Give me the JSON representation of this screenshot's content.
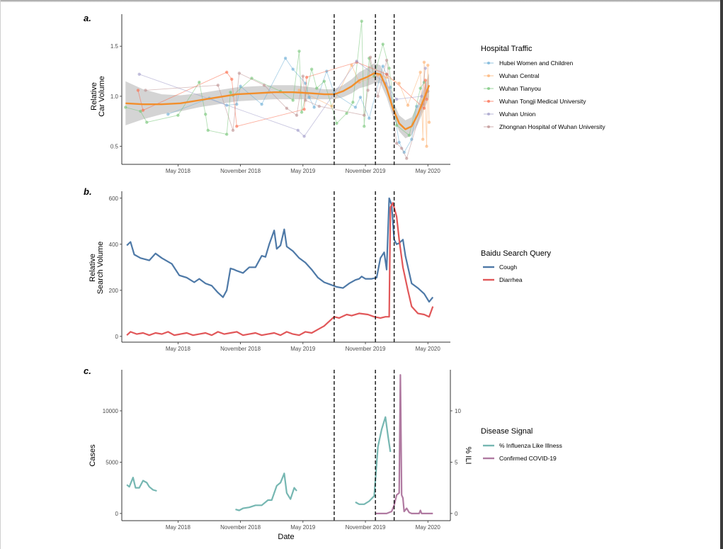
{
  "chart_data": [
    {
      "panel": "a.",
      "type": "line",
      "title": "",
      "ylabel": [
        "Relative",
        "Car Volume"
      ],
      "xlabel": "",
      "ylim": [
        0.32,
        1.82
      ],
      "yticks": [
        0.5,
        1.0,
        1.5
      ],
      "ytick_labels": [
        "0.5",
        "1.0",
        "1.5"
      ],
      "xticks": [
        2018.33,
        2018.83,
        2019.33,
        2019.83,
        2020.33
      ],
      "xtick_labels": [
        "May 2018",
        "November 2018",
        "May 2019",
        "November 2019",
        "May 2020"
      ],
      "xlim": [
        2017.88,
        2020.51
      ],
      "vlines": [
        2019.58,
        2019.91,
        2020.06
      ],
      "legend": {
        "title": "Hospital Traffic",
        "placement": "right"
      },
      "series": [
        {
          "name": "Hubei Women and Children",
          "color": "#6baed6",
          "x": [
            2018.25,
            2018.58,
            2018.72,
            2018.8,
            2018.83,
            2019.0,
            2019.19,
            2019.25,
            2019.35,
            2019.38,
            2019.42,
            2019.52,
            2019.58,
            2019.75,
            2019.79,
            2019.86,
            2019.97,
            2020.0,
            2020.03,
            2020.1,
            2020.14,
            2020.2,
            2020.24
          ],
          "y": [
            0.82,
            0.98,
            0.91,
            0.92,
            1.1,
            0.92,
            1.38,
            1.27,
            1.13,
            0.99,
            0.89,
            1.25,
            1.03,
            0.89,
            0.99,
            0.78,
            1.3,
            1.22,
            1.09,
            0.54,
            0.44,
            0.57,
            0.9
          ]
        },
        {
          "name": "Wuhan Central",
          "color": "#fdae6b",
          "x": [
            2019.3,
            2019.56,
            2019.72,
            2019.78,
            2019.93,
            2020.0,
            2020.1,
            2020.17,
            2020.27,
            2020.29,
            2020.3,
            2020.32,
            2020.33,
            2020.34
          ],
          "y": [
            1.06,
            0.9,
            1.31,
            1.14,
            1.21,
            1.19,
            1.13,
            0.91,
            1.24,
            0.57,
            1.34,
            0.5,
            1.31,
            0.74
          ]
        },
        {
          "name": "Wuhan Tianyou",
          "color": "#74c476",
          "x": [
            2017.91,
            2018.03,
            2018.08,
            2018.33,
            2018.5,
            2018.55,
            2018.57,
            2018.72,
            2018.75,
            2018.77,
            2018.92,
            2019.15,
            2019.25,
            2019.3,
            2019.32,
            2019.4,
            2019.44,
            2019.5,
            2019.6,
            2019.68,
            2019.73,
            2019.8,
            2019.82,
            2019.86,
            2019.9,
            2019.97,
            2020.02,
            2020.08,
            2020.18,
            2020.27,
            2020.3
          ],
          "y": [
            0.89,
            0.85,
            0.74,
            0.81,
            1.14,
            0.82,
            0.66,
            0.62,
            1.04,
            1.01,
            1.18,
            1.05,
            0.96,
            1.45,
            0.84,
            1.27,
            1.08,
            1.15,
            0.73,
            0.83,
            0.94,
            1.75,
            0.7,
            1.38,
            1.2,
            1.52,
            1.28,
            0.71,
            0.61,
            1.08,
            1.14
          ]
        },
        {
          "name": "Wuhan Tongji Medical University",
          "color": "#fb6a4a",
          "x": [
            2018.01,
            2018.05,
            2018.72,
            2018.76,
            2018.8,
            2019.34,
            2019.36,
            2019.76,
            2020.0,
            2020.3,
            2020.31,
            2020.32
          ],
          "y": [
            1.06,
            0.86,
            1.24,
            1.17,
            0.7,
            0.87,
            1.19,
            1.34,
            1.22,
            0.88,
            1.16,
            0.97
          ]
        },
        {
          "name": "Wuhan Union",
          "color": "#9e9ac8",
          "x": [
            2018.02,
            2019.29,
            2019.34,
            2019.76,
            2019.99,
            2020.08,
            2020.28,
            2020.31
          ],
          "y": [
            1.22,
            0.66,
            0.6,
            1.35,
            1.13,
            0.97,
            1.0,
            1.28
          ]
        },
        {
          "name": "Zhongnan Hospital of Wuhan University",
          "color": "#bc8f8f",
          "x": [
            2018.07,
            2018.65,
            2018.77,
            2018.82,
            2019.02,
            2019.2,
            2019.28,
            2019.33,
            2019.35,
            2019.46,
            2019.82,
            2019.85,
            2019.87,
            2019.93,
            2020.0,
            2020.08,
            2020.12,
            2020.16,
            2020.29,
            2020.33
          ],
          "y": [
            1.06,
            1.11,
            0.66,
            1.23,
            1.11,
            0.88,
            0.81,
            1.2,
            0.96,
            0.9,
            0.81,
            1.06,
            1.39,
            1.0,
            1.36,
            0.53,
            0.48,
            0.38,
            0.92,
            1.05
          ]
        }
      ],
      "smooth": {
        "name": "LOESS fit",
        "color": "#f28e2b",
        "x": [
          2017.91,
          2018.05,
          2018.2,
          2018.35,
          2018.5,
          2018.65,
          2018.8,
          2018.95,
          2019.1,
          2019.25,
          2019.4,
          2019.5,
          2019.58,
          2019.65,
          2019.72,
          2019.78,
          2019.84,
          2019.9,
          2019.95,
          2020.0,
          2020.05,
          2020.1,
          2020.15,
          2020.2,
          2020.25,
          2020.3,
          2020.34
        ],
        "y": [
          0.93,
          0.92,
          0.92,
          0.93,
          0.96,
          0.99,
          1.02,
          1.03,
          1.04,
          1.04,
          1.03,
          1.02,
          1.02,
          1.05,
          1.1,
          1.16,
          1.19,
          1.23,
          1.22,
          1.08,
          0.88,
          0.73,
          0.67,
          0.7,
          0.82,
          0.98,
          1.11
        ],
        "ci_half_width": [
          0.22,
          0.15,
          0.1,
          0.08,
          0.07,
          0.07,
          0.07,
          0.07,
          0.07,
          0.07,
          0.06,
          0.05,
          0.05,
          0.06,
          0.07,
          0.08,
          0.09,
          0.1,
          0.09,
          0.09,
          0.08,
          0.08,
          0.09,
          0.09,
          0.1,
          0.11,
          0.12
        ]
      }
    },
    {
      "panel": "b.",
      "type": "line",
      "title": "",
      "ylabel": [
        "Relative",
        "Search Volume"
      ],
      "xlabel": "",
      "ylim": [
        -25,
        630
      ],
      "yticks": [
        0,
        200,
        400,
        600
      ],
      "ytick_labels": [
        "0",
        "200",
        "400",
        "600"
      ],
      "xticks": [
        2018.33,
        2018.83,
        2019.33,
        2019.83,
        2020.33
      ],
      "xtick_labels": [
        "May 2018",
        "November 2018",
        "May 2019",
        "November 2019",
        "May 2020"
      ],
      "xlim": [
        2017.88,
        2020.51
      ],
      "vlines": [
        2019.58,
        2019.91,
        2020.06
      ],
      "legend": {
        "title": "Baidu Search Query",
        "placement": "right"
      },
      "series": [
        {
          "name": "Cough",
          "color": "#4e79a7",
          "x": [
            2017.92,
            2017.95,
            2017.98,
            2018.03,
            2018.1,
            2018.15,
            2018.2,
            2018.28,
            2018.34,
            2018.4,
            2018.46,
            2018.5,
            2018.55,
            2018.6,
            2018.65,
            2018.69,
            2018.72,
            2018.75,
            2018.78,
            2018.8,
            2018.85,
            2018.9,
            2018.95,
            2019.0,
            2019.03,
            2019.06,
            2019.1,
            2019.12,
            2019.15,
            2019.18,
            2019.2,
            2019.25,
            2019.3,
            2019.35,
            2019.4,
            2019.45,
            2019.5,
            2019.55,
            2019.6,
            2019.65,
            2019.7,
            2019.75,
            2019.78,
            2019.8,
            2019.83,
            2019.88,
            2019.92,
            2019.95,
            2019.98,
            2020.0,
            2020.02,
            2020.04,
            2020.06,
            2020.08,
            2020.1,
            2020.13,
            2020.15,
            2020.2,
            2020.25,
            2020.3,
            2020.34,
            2020.37
          ],
          "y": [
            395,
            410,
            355,
            340,
            330,
            360,
            340,
            315,
            265,
            255,
            235,
            250,
            230,
            220,
            190,
            170,
            200,
            295,
            290,
            285,
            275,
            300,
            300,
            350,
            345,
            400,
            460,
            380,
            395,
            465,
            390,
            370,
            340,
            320,
            290,
            255,
            235,
            225,
            215,
            210,
            230,
            245,
            250,
            260,
            250,
            250,
            255,
            340,
            365,
            290,
            600,
            570,
            420,
            400,
            405,
            420,
            350,
            230,
            210,
            185,
            150,
            170
          ]
        },
        {
          "name": "Diarrhea",
          "color": "#e15759",
          "x": [
            2017.92,
            2017.95,
            2018.0,
            2018.05,
            2018.1,
            2018.15,
            2018.2,
            2018.25,
            2018.3,
            2018.35,
            2018.4,
            2018.45,
            2018.5,
            2018.55,
            2018.6,
            2018.65,
            2018.7,
            2018.75,
            2018.8,
            2018.85,
            2018.9,
            2018.95,
            2019.0,
            2019.05,
            2019.1,
            2019.15,
            2019.2,
            2019.25,
            2019.3,
            2019.35,
            2019.4,
            2019.45,
            2019.5,
            2019.55,
            2019.58,
            2019.62,
            2019.68,
            2019.72,
            2019.78,
            2019.85,
            2019.9,
            2019.95,
            2019.99,
            2020.02,
            2020.03,
            2020.05,
            2020.08,
            2020.1,
            2020.13,
            2020.17,
            2020.2,
            2020.25,
            2020.3,
            2020.34,
            2020.37
          ],
          "y": [
            5,
            20,
            10,
            15,
            5,
            15,
            10,
            20,
            5,
            10,
            15,
            5,
            10,
            15,
            5,
            20,
            10,
            15,
            20,
            5,
            10,
            15,
            5,
            10,
            15,
            5,
            20,
            10,
            5,
            20,
            15,
            30,
            45,
            70,
            85,
            80,
            95,
            90,
            100,
            95,
            85,
            80,
            85,
            85,
            560,
            580,
            520,
            420,
            300,
            200,
            130,
            100,
            95,
            85,
            130
          ]
        }
      ]
    },
    {
      "panel": "c.",
      "type": "line",
      "title": "",
      "ylabel": "Cases",
      "ylabel_right": "% ILI",
      "xlabel": "Date",
      "ylim": [
        -700,
        14000
      ],
      "yticks": [
        0,
        5000,
        10000
      ],
      "ytick_labels": [
        "0",
        "5000",
        "10000"
      ],
      "ylim_right": [
        -0.7,
        14.0
      ],
      "yticks_right": [
        0,
        5,
        10
      ],
      "ytick_labels_right": [
        "0",
        "5",
        "10"
      ],
      "xticks": [
        2018.33,
        2018.83,
        2019.33,
        2019.83,
        2020.33
      ],
      "xtick_labels": [
        "May 2018",
        "November 2018",
        "May 2019",
        "November 2019",
        "May 2020"
      ],
      "xlim": [
        2017.88,
        2020.51
      ],
      "vlines": [
        2019.58,
        2019.91,
        2020.06
      ],
      "legend": {
        "title": "Disease Signal",
        "placement": "right"
      },
      "series": [
        {
          "name": "% Influenza Like Illness",
          "color": "#76b7b2",
          "axis": "right",
          "segments": [
            {
              "x": [
                2017.92,
                2017.94,
                2017.97,
                2017.99,
                2018.02,
                2018.05,
                2018.08,
                2018.1,
                2018.13,
                2018.16
              ],
              "y": [
                2.8,
                2.6,
                3.5,
                2.5,
                2.5,
                3.2,
                3.0,
                2.6,
                2.3,
                2.2
              ]
            },
            {
              "x": [
                2018.79,
                2018.82,
                2018.85,
                2018.9,
                2018.95,
                2019.0,
                2019.05,
                2019.08,
                2019.12,
                2019.15,
                2019.18,
                2019.2,
                2019.23,
                2019.26,
                2019.28
              ],
              "y": [
                0.4,
                0.3,
                0.5,
                0.6,
                0.8,
                0.8,
                1.3,
                1.3,
                2.7,
                3.0,
                3.9,
                2.0,
                1.4,
                2.5,
                2.2
              ]
            },
            {
              "x": [
                2019.75,
                2019.78,
                2019.82,
                2019.86,
                2019.9,
                2019.93,
                2019.96,
                2019.99,
                2020.01,
                2020.03
              ],
              "y": [
                1.1,
                0.9,
                0.9,
                1.2,
                1.7,
                6.5,
                8.2,
                9.4,
                7.6,
                6.0
              ]
            }
          ]
        },
        {
          "name": "Confirmed COVID-19",
          "color": "#b07aa1",
          "axis": "left",
          "x": [
            2019.91,
            2019.95,
            2020.0,
            2020.04,
            2020.06,
            2020.08,
            2020.1,
            2020.11,
            2020.12,
            2020.13,
            2020.14,
            2020.16,
            2020.18,
            2020.2,
            2020.26,
            2020.27,
            2020.28,
            2020.3,
            2020.37
          ],
          "y": [
            0,
            0,
            0,
            200,
            800,
            1800,
            2000,
            13500,
            1800,
            1500,
            200,
            500,
            100,
            0,
            0,
            300,
            0,
            0,
            0
          ]
        }
      ]
    }
  ]
}
